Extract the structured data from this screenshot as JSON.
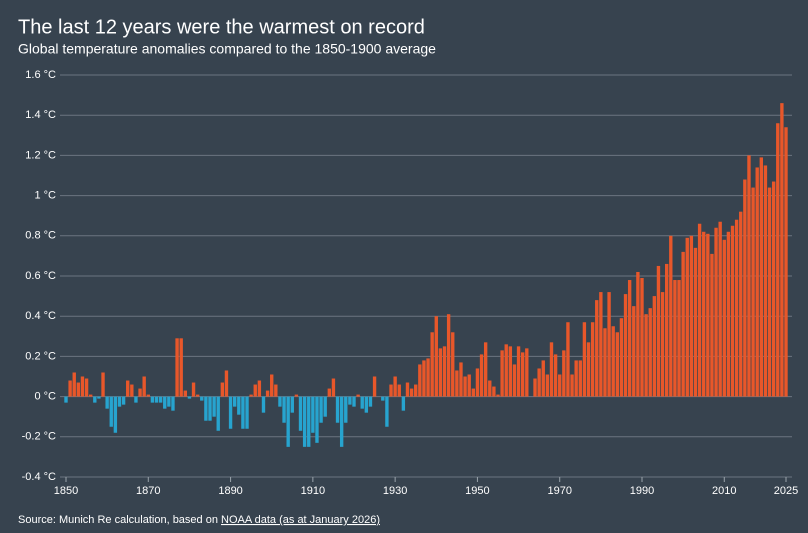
{
  "chart_data": {
    "type": "bar",
    "title": "The last 12 years were the warmest on record",
    "subtitle": "Global temperature anomalies compared to the 1850-1900 average",
    "source": {
      "text": "Source: Munich Re calculation, based on ",
      "link": "NOAA data (as at January 2026)"
    },
    "positive_color": "#e8572a",
    "negative_color": "#27a4cf",
    "grid": true,
    "xlim": [
      1850,
      2025
    ],
    "xticks": [
      1850,
      1870,
      1890,
      1910,
      1930,
      1950,
      1970,
      1990,
      2010,
      2025
    ],
    "ylim": [
      -0.4,
      1.6
    ],
    "yticks": [
      {
        "value": -0.4,
        "label": "-0.4 °C"
      },
      {
        "value": -0.2,
        "label": "-0.2 °C"
      },
      {
        "value": 0,
        "label": "0 °C"
      },
      {
        "value": 0.2,
        "label": "0.2 °C"
      },
      {
        "value": 0.4,
        "label": "0.4 °C"
      },
      {
        "value": 0.6,
        "label": "0.6 °C"
      },
      {
        "value": 0.8,
        "label": "0.8 °C"
      },
      {
        "value": 1,
        "label": "1 °C"
      },
      {
        "value": 1.2,
        "label": "1.2 °C"
      },
      {
        "value": 1.4,
        "label": "1.4 °C"
      },
      {
        "value": 1.6,
        "label": "1.6 °C"
      }
    ],
    "x": [
      1850,
      1851,
      1852,
      1853,
      1854,
      1855,
      1856,
      1857,
      1858,
      1859,
      1860,
      1861,
      1862,
      1863,
      1864,
      1865,
      1866,
      1867,
      1868,
      1869,
      1870,
      1871,
      1872,
      1873,
      1874,
      1875,
      1876,
      1877,
      1878,
      1879,
      1880,
      1881,
      1882,
      1883,
      1884,
      1885,
      1886,
      1887,
      1888,
      1889,
      1890,
      1891,
      1892,
      1893,
      1894,
      1895,
      1896,
      1897,
      1898,
      1899,
      1900,
      1901,
      1902,
      1903,
      1904,
      1905,
      1906,
      1907,
      1908,
      1909,
      1910,
      1911,
      1912,
      1913,
      1914,
      1915,
      1916,
      1917,
      1918,
      1919,
      1920,
      1921,
      1922,
      1923,
      1924,
      1925,
      1926,
      1927,
      1928,
      1929,
      1930,
      1931,
      1932,
      1933,
      1934,
      1935,
      1936,
      1937,
      1938,
      1939,
      1940,
      1941,
      1942,
      1943,
      1944,
      1945,
      1946,
      1947,
      1948,
      1949,
      1950,
      1951,
      1952,
      1953,
      1954,
      1955,
      1956,
      1957,
      1958,
      1959,
      1960,
      1961,
      1962,
      1963,
      1964,
      1965,
      1966,
      1967,
      1968,
      1969,
      1970,
      1971,
      1972,
      1973,
      1974,
      1975,
      1976,
      1977,
      1978,
      1979,
      1980,
      1981,
      1982,
      1983,
      1984,
      1985,
      1986,
      1987,
      1988,
      1989,
      1990,
      1991,
      1992,
      1993,
      1994,
      1995,
      1996,
      1997,
      1998,
      1999,
      2000,
      2001,
      2002,
      2003,
      2004,
      2005,
      2006,
      2007,
      2008,
      2009,
      2010,
      2011,
      2012,
      2013,
      2014,
      2015,
      2016,
      2017,
      2018,
      2019,
      2020,
      2021,
      2022,
      2023,
      2024,
      2025
    ],
    "values": [
      -0.03,
      0.08,
      0.12,
      0.07,
      0.1,
      0.09,
      0.01,
      -0.03,
      -0.01,
      0.12,
      -0.06,
      -0.15,
      -0.18,
      -0.05,
      -0.04,
      0.08,
      0.06,
      -0.03,
      0.04,
      0.1,
      0.01,
      -0.03,
      -0.03,
      -0.03,
      -0.06,
      -0.05,
      -0.07,
      0.29,
      0.29,
      0.03,
      -0.01,
      0.07,
      0.01,
      -0.02,
      -0.12,
      -0.12,
      -0.1,
      -0.17,
      0.07,
      0.13,
      -0.16,
      -0.05,
      -0.09,
      -0.16,
      -0.16,
      0.01,
      0.06,
      0.08,
      -0.08,
      0.03,
      0.11,
      0.06,
      -0.05,
      -0.13,
      -0.25,
      -0.08,
      0.01,
      -0.17,
      -0.25,
      -0.25,
      -0.18,
      -0.23,
      -0.13,
      -0.1,
      0.04,
      0.09,
      -0.13,
      -0.25,
      -0.13,
      -0.04,
      -0.05,
      0.01,
      -0.06,
      -0.08,
      -0.05,
      0.1,
      0.0,
      -0.02,
      -0.15,
      0.06,
      0.1,
      0.06,
      -0.07,
      0.07,
      0.04,
      0.06,
      0.16,
      0.18,
      0.19,
      0.32,
      0.4,
      0.24,
      0.25,
      0.41,
      0.32,
      0.13,
      0.17,
      0.1,
      0.11,
      0.04,
      0.14,
      0.21,
      0.27,
      0.08,
      0.05,
      0.01,
      0.23,
      0.26,
      0.25,
      0.16,
      0.25,
      0.22,
      0.24,
      0.0,
      0.09,
      0.14,
      0.18,
      0.11,
      0.27,
      0.21,
      0.11,
      0.23,
      0.37,
      0.11,
      0.18,
      0.18,
      0.37,
      0.27,
      0.37,
      0.48,
      0.52,
      0.34,
      0.52,
      0.35,
      0.32,
      0.39,
      0.51,
      0.58,
      0.45,
      0.62,
      0.59,
      0.41,
      0.44,
      0.5,
      0.65,
      0.52,
      0.66,
      0.8,
      0.58,
      0.58,
      0.72,
      0.79,
      0.8,
      0.74,
      0.86,
      0.82,
      0.81,
      0.71,
      0.84,
      0.87,
      0.78,
      0.82,
      0.85,
      0.88,
      0.92,
      1.08,
      1.2,
      1.04,
      1.14,
      1.19,
      1.15,
      1.04,
      1.07,
      1.36,
      1.46,
      1.34
    ]
  }
}
